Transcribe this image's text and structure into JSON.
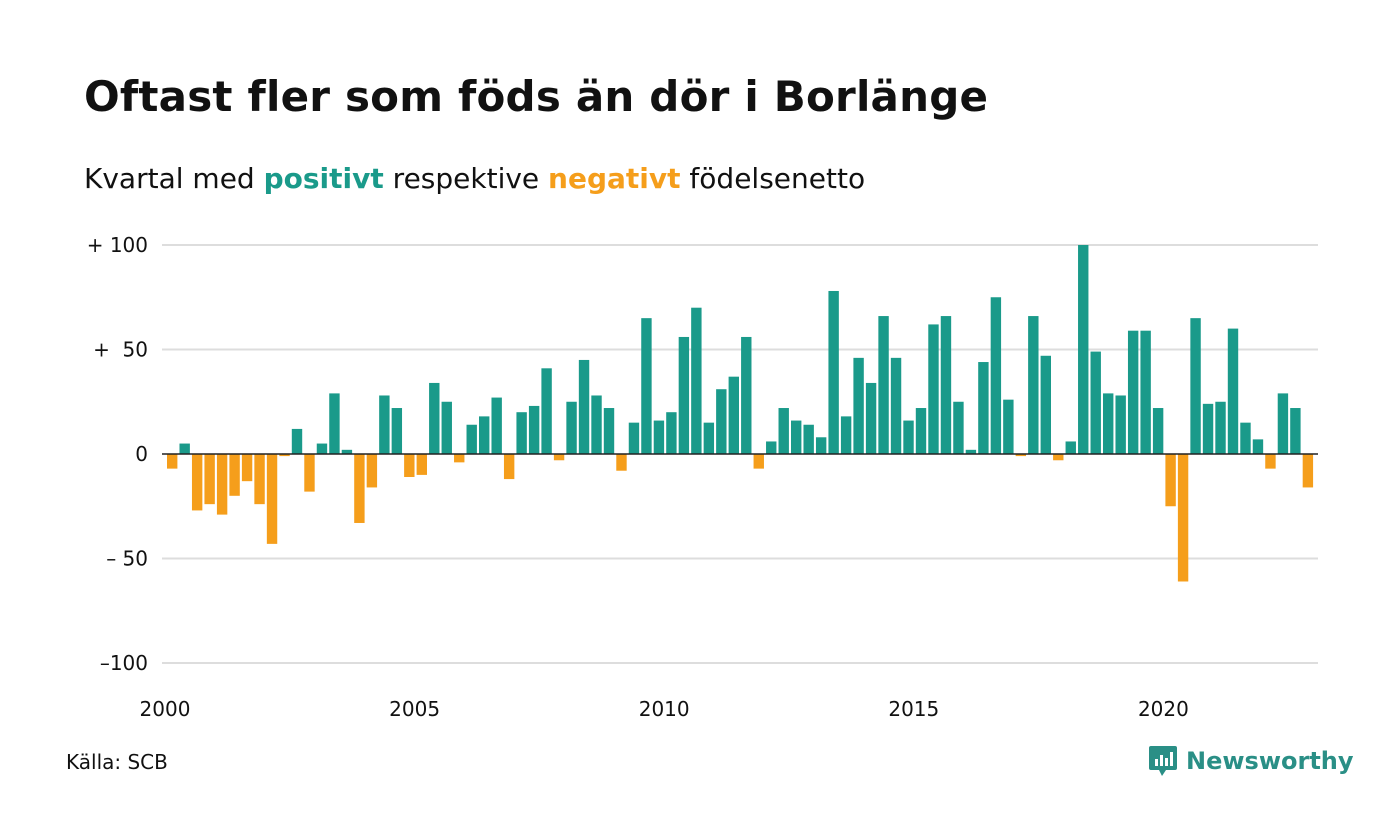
{
  "title": "Oftast fler som föds än dör i Borlänge",
  "subtitle": {
    "before": "Kvartal med ",
    "positive": "positivt",
    "middle": " respektive ",
    "negative": "negativt",
    "after": " födelsenetto"
  },
  "source": "Källa: SCB",
  "brand": "Newsworthy",
  "colors": {
    "positive": "#1a9a8a",
    "negative": "#f59e1b",
    "grid": "#dddddd",
    "axis": "#222222",
    "brand": "#2a8f86"
  },
  "chart_data": {
    "type": "bar",
    "x_start": "2000 Q1",
    "x_tick_labels": [
      "2000",
      "2005",
      "2010",
      "2015",
      "2020"
    ],
    "y_tick_labels": [
      "+ 100",
      "+  50",
      "0",
      "– 50",
      "–100"
    ],
    "ylim": [
      -100,
      100
    ],
    "grid": true,
    "values": [
      -7,
      5,
      -27,
      -24,
      -29,
      -20,
      -13,
      -24,
      -43,
      -1,
      12,
      -18,
      5,
      29,
      2,
      -33,
      -16,
      28,
      22,
      -11,
      -10,
      34,
      25,
      -4,
      14,
      18,
      27,
      -12,
      20,
      23,
      41,
      -3,
      25,
      45,
      28,
      22,
      -8,
      15,
      65,
      16,
      20,
      56,
      70,
      15,
      31,
      37,
      56,
      -7,
      6,
      22,
      16,
      14,
      8,
      78,
      18,
      46,
      34,
      66,
      46,
      16,
      22,
      62,
      66,
      25,
      2,
      44,
      75,
      26,
      -1,
      66,
      47,
      -3,
      6,
      100,
      49,
      29,
      28,
      59,
      59,
      22,
      -25,
      -61,
      65,
      24,
      25,
      60,
      15,
      7,
      -7,
      29,
      22,
      -16
    ]
  }
}
